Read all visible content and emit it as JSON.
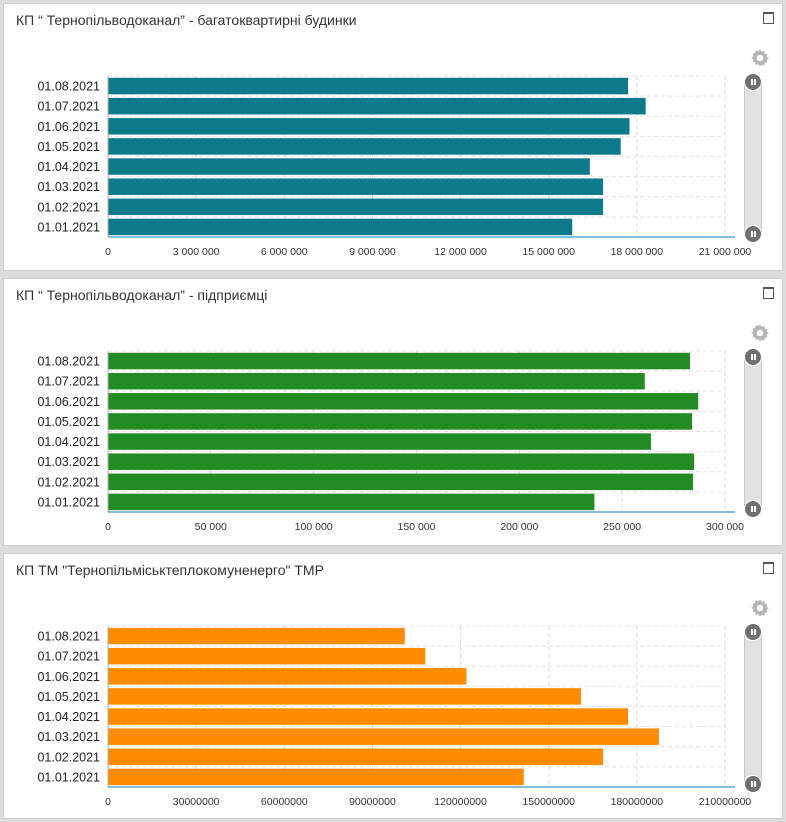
{
  "panels": [
    {
      "title": "КП “ Тернопільводоканал” - багатоквартирні будинки",
      "chart_data": {
        "type": "bar",
        "orientation": "horizontal",
        "color": "#0d7a8c",
        "categories": [
          "01.08.2021",
          "01.07.2021",
          "01.06.2021",
          "01.05.2021",
          "01.04.2021",
          "01.03.2021",
          "01.02.2021",
          "01.01.2021"
        ],
        "values": [
          17700000,
          18300000,
          17750000,
          17450000,
          16400000,
          16850000,
          16850000,
          15800000
        ],
        "xticks": [
          "0",
          "3 000 000",
          "6 000 000",
          "9 000 000",
          "12 000 000",
          "15 000 000",
          "18 000 000",
          "21 000 000"
        ],
        "xlim": [
          0,
          21000000
        ],
        "grid": true,
        "title": "",
        "xlabel": "",
        "ylabel": ""
      }
    },
    {
      "title": "КП “ Тернопільводоканал” - підприємці",
      "chart_data": {
        "type": "bar",
        "orientation": "horizontal",
        "color": "#228b22",
        "categories": [
          "01.08.2021",
          "01.07.2021",
          "01.06.2021",
          "01.05.2021",
          "01.04.2021",
          "01.03.2021",
          "01.02.2021",
          "01.01.2021"
        ],
        "values": [
          283000,
          261000,
          287000,
          284000,
          264000,
          285000,
          284500,
          236500
        ],
        "xticks": [
          "0",
          "50 000",
          "100 000",
          "150 000",
          "200 000",
          "250 000",
          "300 000"
        ],
        "xlim": [
          0,
          300000
        ],
        "grid": true,
        "title": "",
        "xlabel": "",
        "ylabel": ""
      }
    },
    {
      "title": "КП ТМ \"Тернопільміськтеплокомуненерго\" ТМР",
      "chart_data": {
        "type": "bar",
        "orientation": "horizontal",
        "color": "#ff8c00",
        "categories": [
          "01.08.2021",
          "01.07.2021",
          "01.06.2021",
          "01.05.2021",
          "01.04.2021",
          "01.03.2021",
          "01.02.2021",
          "01.01.2021"
        ],
        "values": [
          101000000,
          108000000,
          122000000,
          161000000,
          177000000,
          187500000,
          168500000,
          141500000
        ],
        "xticks": [
          "0",
          "30000000",
          "60000000",
          "90000000",
          "120000000",
          "150000000",
          "180000000",
          "210000000"
        ],
        "xlim": [
          0,
          210000000
        ],
        "grid": true,
        "title": "",
        "xlabel": "",
        "ylabel": ""
      }
    }
  ]
}
